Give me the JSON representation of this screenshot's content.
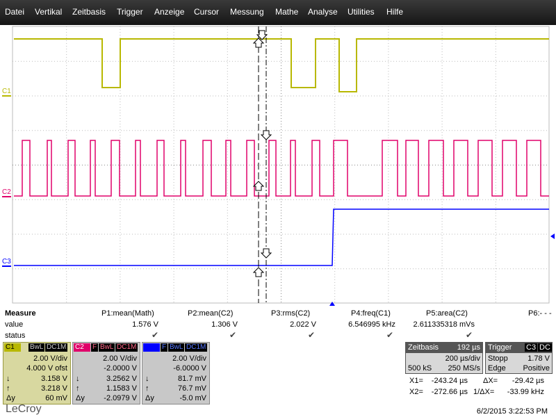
{
  "menu": [
    "Datei",
    "Vertikal",
    "Zeitbasis",
    "Trigger",
    "Anzeige",
    "Cursor",
    "Messung",
    "Mathe",
    "Analyse",
    "Utilities",
    "Hilfe"
  ],
  "channels": {
    "c1": {
      "label": "C1",
      "color": "#b8b800"
    },
    "c2": {
      "label": "C2",
      "color": "#e0006a"
    },
    "c3": {
      "label": "C3",
      "color": "#0000ff"
    }
  },
  "measure": {
    "title": "Measure",
    "value_label": "value",
    "status_label": "status",
    "params": [
      {
        "name": "P1:mean(Math)",
        "value": "1.576 V",
        "status": "✔"
      },
      {
        "name": "P2:mean(C2)",
        "value": "1.306 V",
        "status": "✔"
      },
      {
        "name": "P3:rms(C2)",
        "value": "2.022 V",
        "status": "✔"
      },
      {
        "name": "P4:freq(C1)",
        "value": "6.546995 kHz",
        "status": "✔"
      },
      {
        "name": "P5:area(C2)",
        "value": "2.611335318 mVs",
        "status": "✔"
      },
      {
        "name": "P6:- - -",
        "value": "",
        "status": ""
      }
    ]
  },
  "cards": [
    {
      "ch": "C1",
      "tags": [
        "BwL",
        "DC1M"
      ],
      "vdiv": "2.00 V/div",
      "offset": "4.000 V ofst",
      "down": "3.158 V",
      "up": "3.218 V",
      "dy": "60 mV",
      "color": "#b8b800"
    },
    {
      "ch": "C2",
      "tags": [
        "F",
        "BwL",
        "DC1M"
      ],
      "vdiv": "2.00 V/div",
      "offset": "-2.0000 V",
      "down": "3.2562 V",
      "up": "1.1583 V",
      "dy": "-2.0979 V",
      "color": "#e0006a"
    },
    {
      "ch": "C3",
      "tags": [
        "F",
        "BwL",
        "DC1M"
      ],
      "vdiv": "2.00 V/div",
      "offset": "-6.0000 V",
      "down": "81.7 mV",
      "up": "76.7 mV",
      "dy": "-5.0 mV",
      "color": "#0000ff"
    }
  ],
  "symbols": {
    "down": "↓",
    "up": "↑",
    "dy": "Δy"
  },
  "timebase": {
    "label": "Zeitbasis",
    "value": "192 µs",
    "div": "200 µs/div",
    "samples": "500 kS",
    "rate": "250 MS/s"
  },
  "trigger": {
    "label": "Trigger",
    "src": "C3",
    "coupling": "DC",
    "mode": "Stopp",
    "level": "1.78 V",
    "type": "Edge",
    "slope": "Positive"
  },
  "cursors": {
    "x1_label": "X1=",
    "x1": "-243.24 µs",
    "dx_label": "ΔX=",
    "dx": "-29.42 µs",
    "x2_label": "X2=",
    "x2": "-272.66 µs",
    "idx_label": "1/ΔX=",
    "idx": "-33.99 kHz"
  },
  "brand": "LeCroy",
  "datetime": "6/2/2015 3:22:53 PM"
}
